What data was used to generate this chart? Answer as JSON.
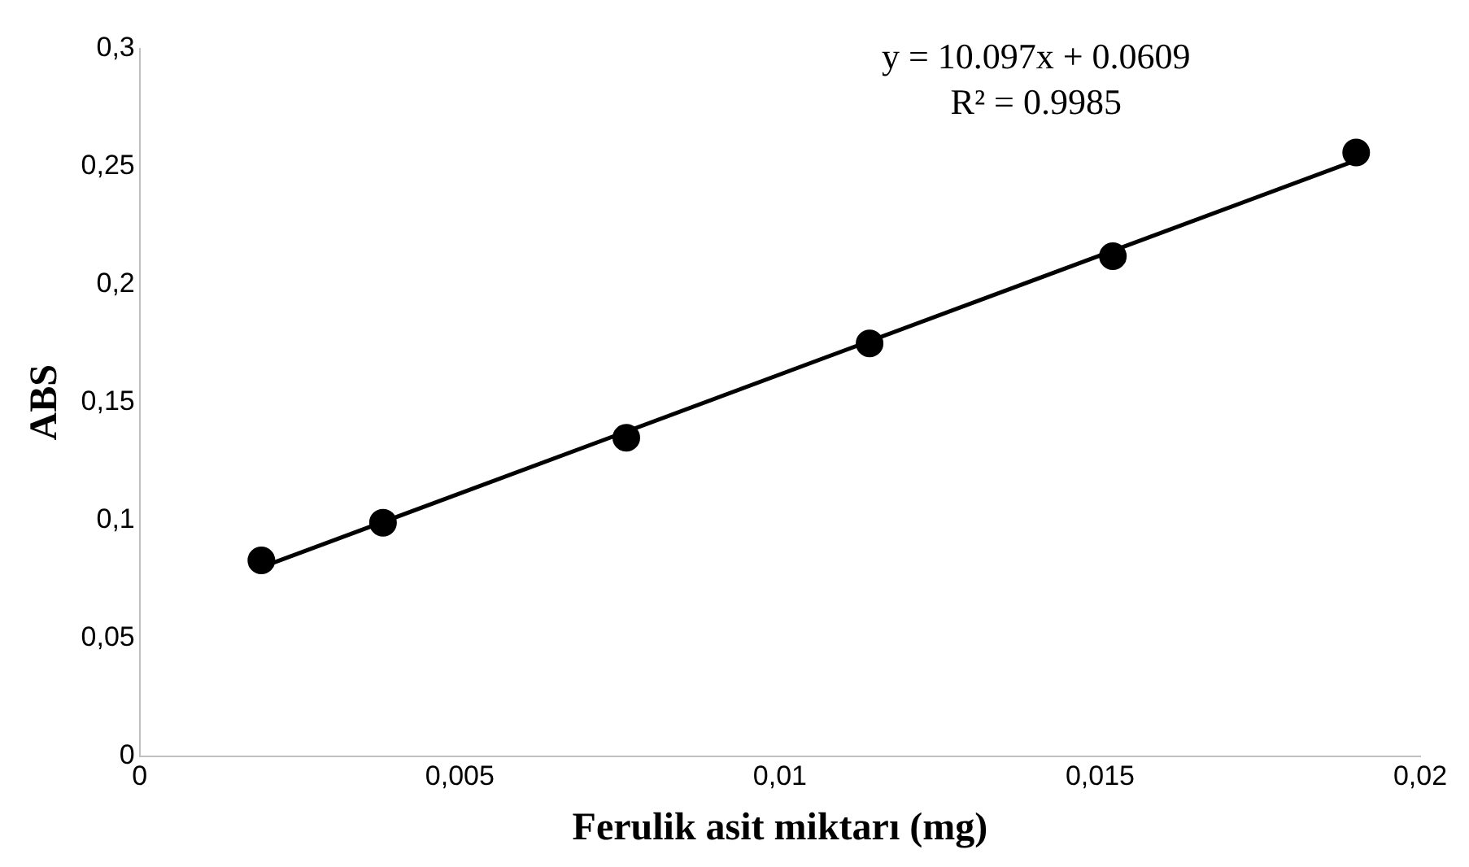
{
  "chart_data": {
    "type": "scatter",
    "xlabel": "Ferulik asit miktarı (mg)",
    "ylabel": "ABS",
    "xlim": [
      0,
      0.02
    ],
    "xticks": [
      0,
      {
        "value": 0.005,
        "label": "0,005"
      },
      {
        "value": 0.01,
        "label": "0,01"
      },
      {
        "value": 0.015,
        "label": "0,015"
      },
      {
        "value": 0.02,
        "label": "0,02"
      }
    ],
    "ylim": [
      0,
      0.3
    ],
    "yticks": [
      0,
      {
        "value": 0.05,
        "label": "0,05"
      },
      {
        "value": 0.1,
        "label": "0,1"
      },
      {
        "value": 0.15,
        "label": "0,15"
      },
      {
        "value": 0.2,
        "label": "0,2"
      },
      {
        "value": 0.25,
        "label": "0,25"
      },
      {
        "value": 0.3,
        "label": "0,3"
      }
    ],
    "grid": false,
    "legend": false,
    "marker": "circle",
    "series": [
      {
        "type": "scatter",
        "color": "#000000",
        "x": [
          0.0019,
          0.0038,
          0.0076,
          0.0114,
          0.0152,
          0.019
        ],
        "values": [
          0.083,
          0.099,
          0.135,
          0.175,
          0.212,
          0.256
        ]
      },
      {
        "type": "line",
        "color": "#000000",
        "line_style": "solid",
        "marker": "none",
        "x": [
          0.0019,
          0.019
        ],
        "values": [
          0.0801,
          0.2527
        ]
      }
    ],
    "annotations": [
      "y = 10.097x + 0.0609",
      "R² = 0.9985"
    ]
  }
}
